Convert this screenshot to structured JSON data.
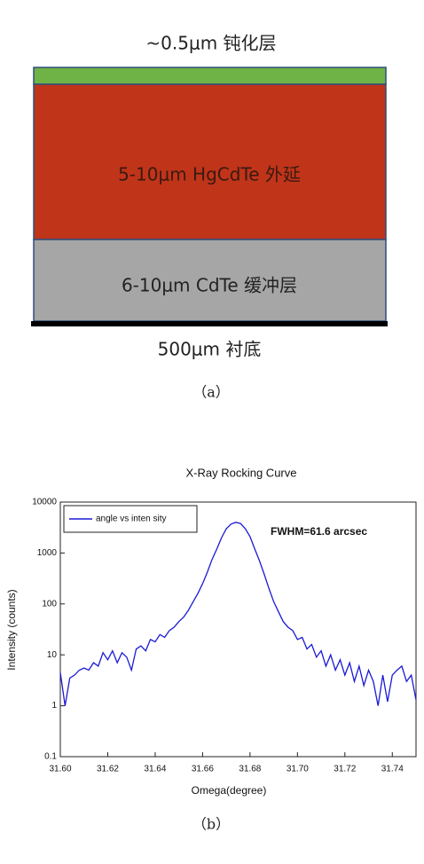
{
  "diagram": {
    "top_label": "~0.5μm 钝化层",
    "layers": [
      {
        "label": "5-10μm HgCdTe 外延"
      },
      {
        "label": "6-10μm CdTe 缓冲层"
      }
    ],
    "bottom_label": "500μm 衬底",
    "caption": "（a）"
  },
  "chart_data": {
    "type": "line",
    "title": "X-Ray Rocking Curve",
    "x_label": "Omega(degree)",
    "y_label": "Intensity (counts)",
    "annotation": "FWHM=61.6 arcsec",
    "caption": "（b）",
    "log_y": true,
    "legend": "upper left",
    "xlim": [
      31.6,
      31.75
    ],
    "xticks": [
      {
        "value": 31.6,
        "label": "31.60"
      },
      {
        "value": 31.62,
        "label": "31.62"
      },
      {
        "value": 31.64,
        "label": "31.64"
      },
      {
        "value": 31.66,
        "label": "31.66"
      },
      {
        "value": 31.68,
        "label": "31.68"
      },
      {
        "value": 31.7,
        "label": "31.70"
      },
      {
        "value": 31.72,
        "label": "31.72"
      },
      {
        "value": 31.74,
        "label": "31.74"
      }
    ],
    "ylim": [
      0.1,
      10000
    ],
    "yticks": [
      0.1,
      1,
      10,
      100,
      1000,
      10000
    ],
    "x": [
      31.6,
      31.602,
      31.604,
      31.606,
      31.608,
      31.61,
      31.612,
      31.614,
      31.616,
      31.618,
      31.62,
      31.622,
      31.624,
      31.626,
      31.628,
      31.63,
      31.632,
      31.634,
      31.636,
      31.638,
      31.64,
      31.642,
      31.644,
      31.646,
      31.648,
      31.65,
      31.652,
      31.654,
      31.656,
      31.658,
      31.66,
      31.662,
      31.664,
      31.666,
      31.668,
      31.67,
      31.672,
      31.674,
      31.676,
      31.678,
      31.68,
      31.682,
      31.684,
      31.686,
      31.688,
      31.69,
      31.692,
      31.694,
      31.696,
      31.698,
      31.7,
      31.702,
      31.704,
      31.706,
      31.708,
      31.71,
      31.712,
      31.714,
      31.716,
      31.718,
      31.72,
      31.722,
      31.724,
      31.726,
      31.728,
      31.73,
      31.732,
      31.734,
      31.736,
      31.738,
      31.74,
      31.742,
      31.744,
      31.746,
      31.748,
      31.75
    ],
    "series": [
      {
        "name": "angle vs inten sity",
        "color": "#1a1ad6",
        "values": [
          4.5,
          1.0,
          3.5,
          4,
          5,
          5.5,
          5,
          7,
          6,
          11,
          8,
          12,
          7,
          11,
          9,
          5,
          13,
          15,
          12,
          20,
          18,
          25,
          22,
          30,
          35,
          45,
          55,
          75,
          110,
          160,
          250,
          420,
          750,
          1200,
          2000,
          3000,
          3700,
          4000,
          3800,
          3000,
          2100,
          1200,
          700,
          380,
          200,
          110,
          70,
          45,
          35,
          30,
          20,
          22,
          13,
          16,
          9,
          12,
          6,
          10,
          5,
          8,
          4,
          7,
          3,
          6,
          2.5,
          5,
          3,
          1,
          4,
          1.2,
          4,
          5,
          6,
          3,
          4,
          1.3
        ]
      }
    ]
  }
}
